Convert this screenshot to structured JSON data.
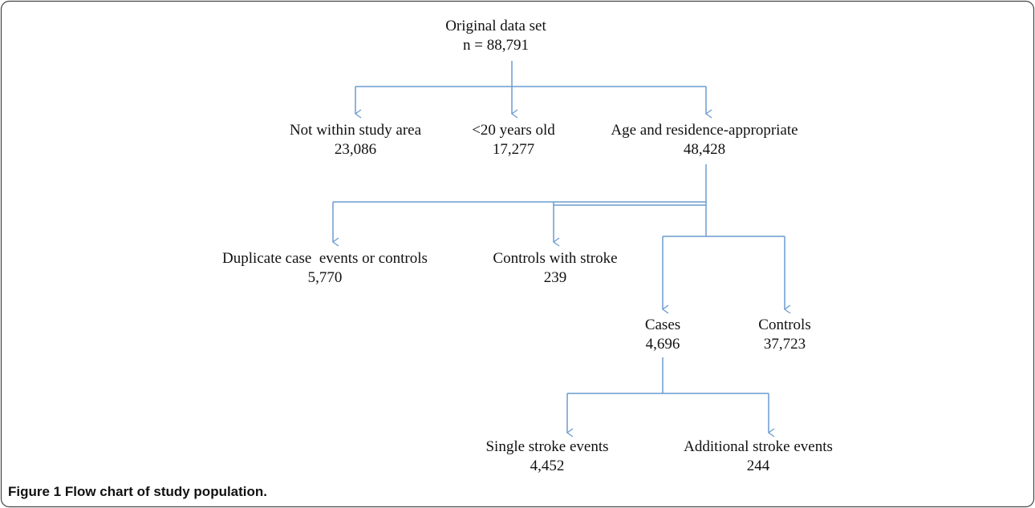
{
  "nodes": [
    {
      "label": "Original data set",
      "count": "n = 88,791"
    },
    {
      "label": "Not within study area",
      "count": "23,086"
    },
    {
      "label": "<20 years old",
      "count": "17,277"
    },
    {
      "label": "Age and residence-appropriate",
      "count": "48,428"
    },
    {
      "label": "Duplicate case  events or controls",
      "count": "5,770"
    },
    {
      "label": "Controls with stroke",
      "count": "239"
    },
    {
      "label": "Cases",
      "count": "4,696"
    },
    {
      "label": "Controls",
      "count": "37,723"
    },
    {
      "label": "Single stroke events",
      "count": "4,452"
    },
    {
      "label": "Additional stroke events",
      "count": "244"
    }
  ],
  "caption": {
    "label": "Figure 1",
    "text": "Flow chart of study population."
  }
}
